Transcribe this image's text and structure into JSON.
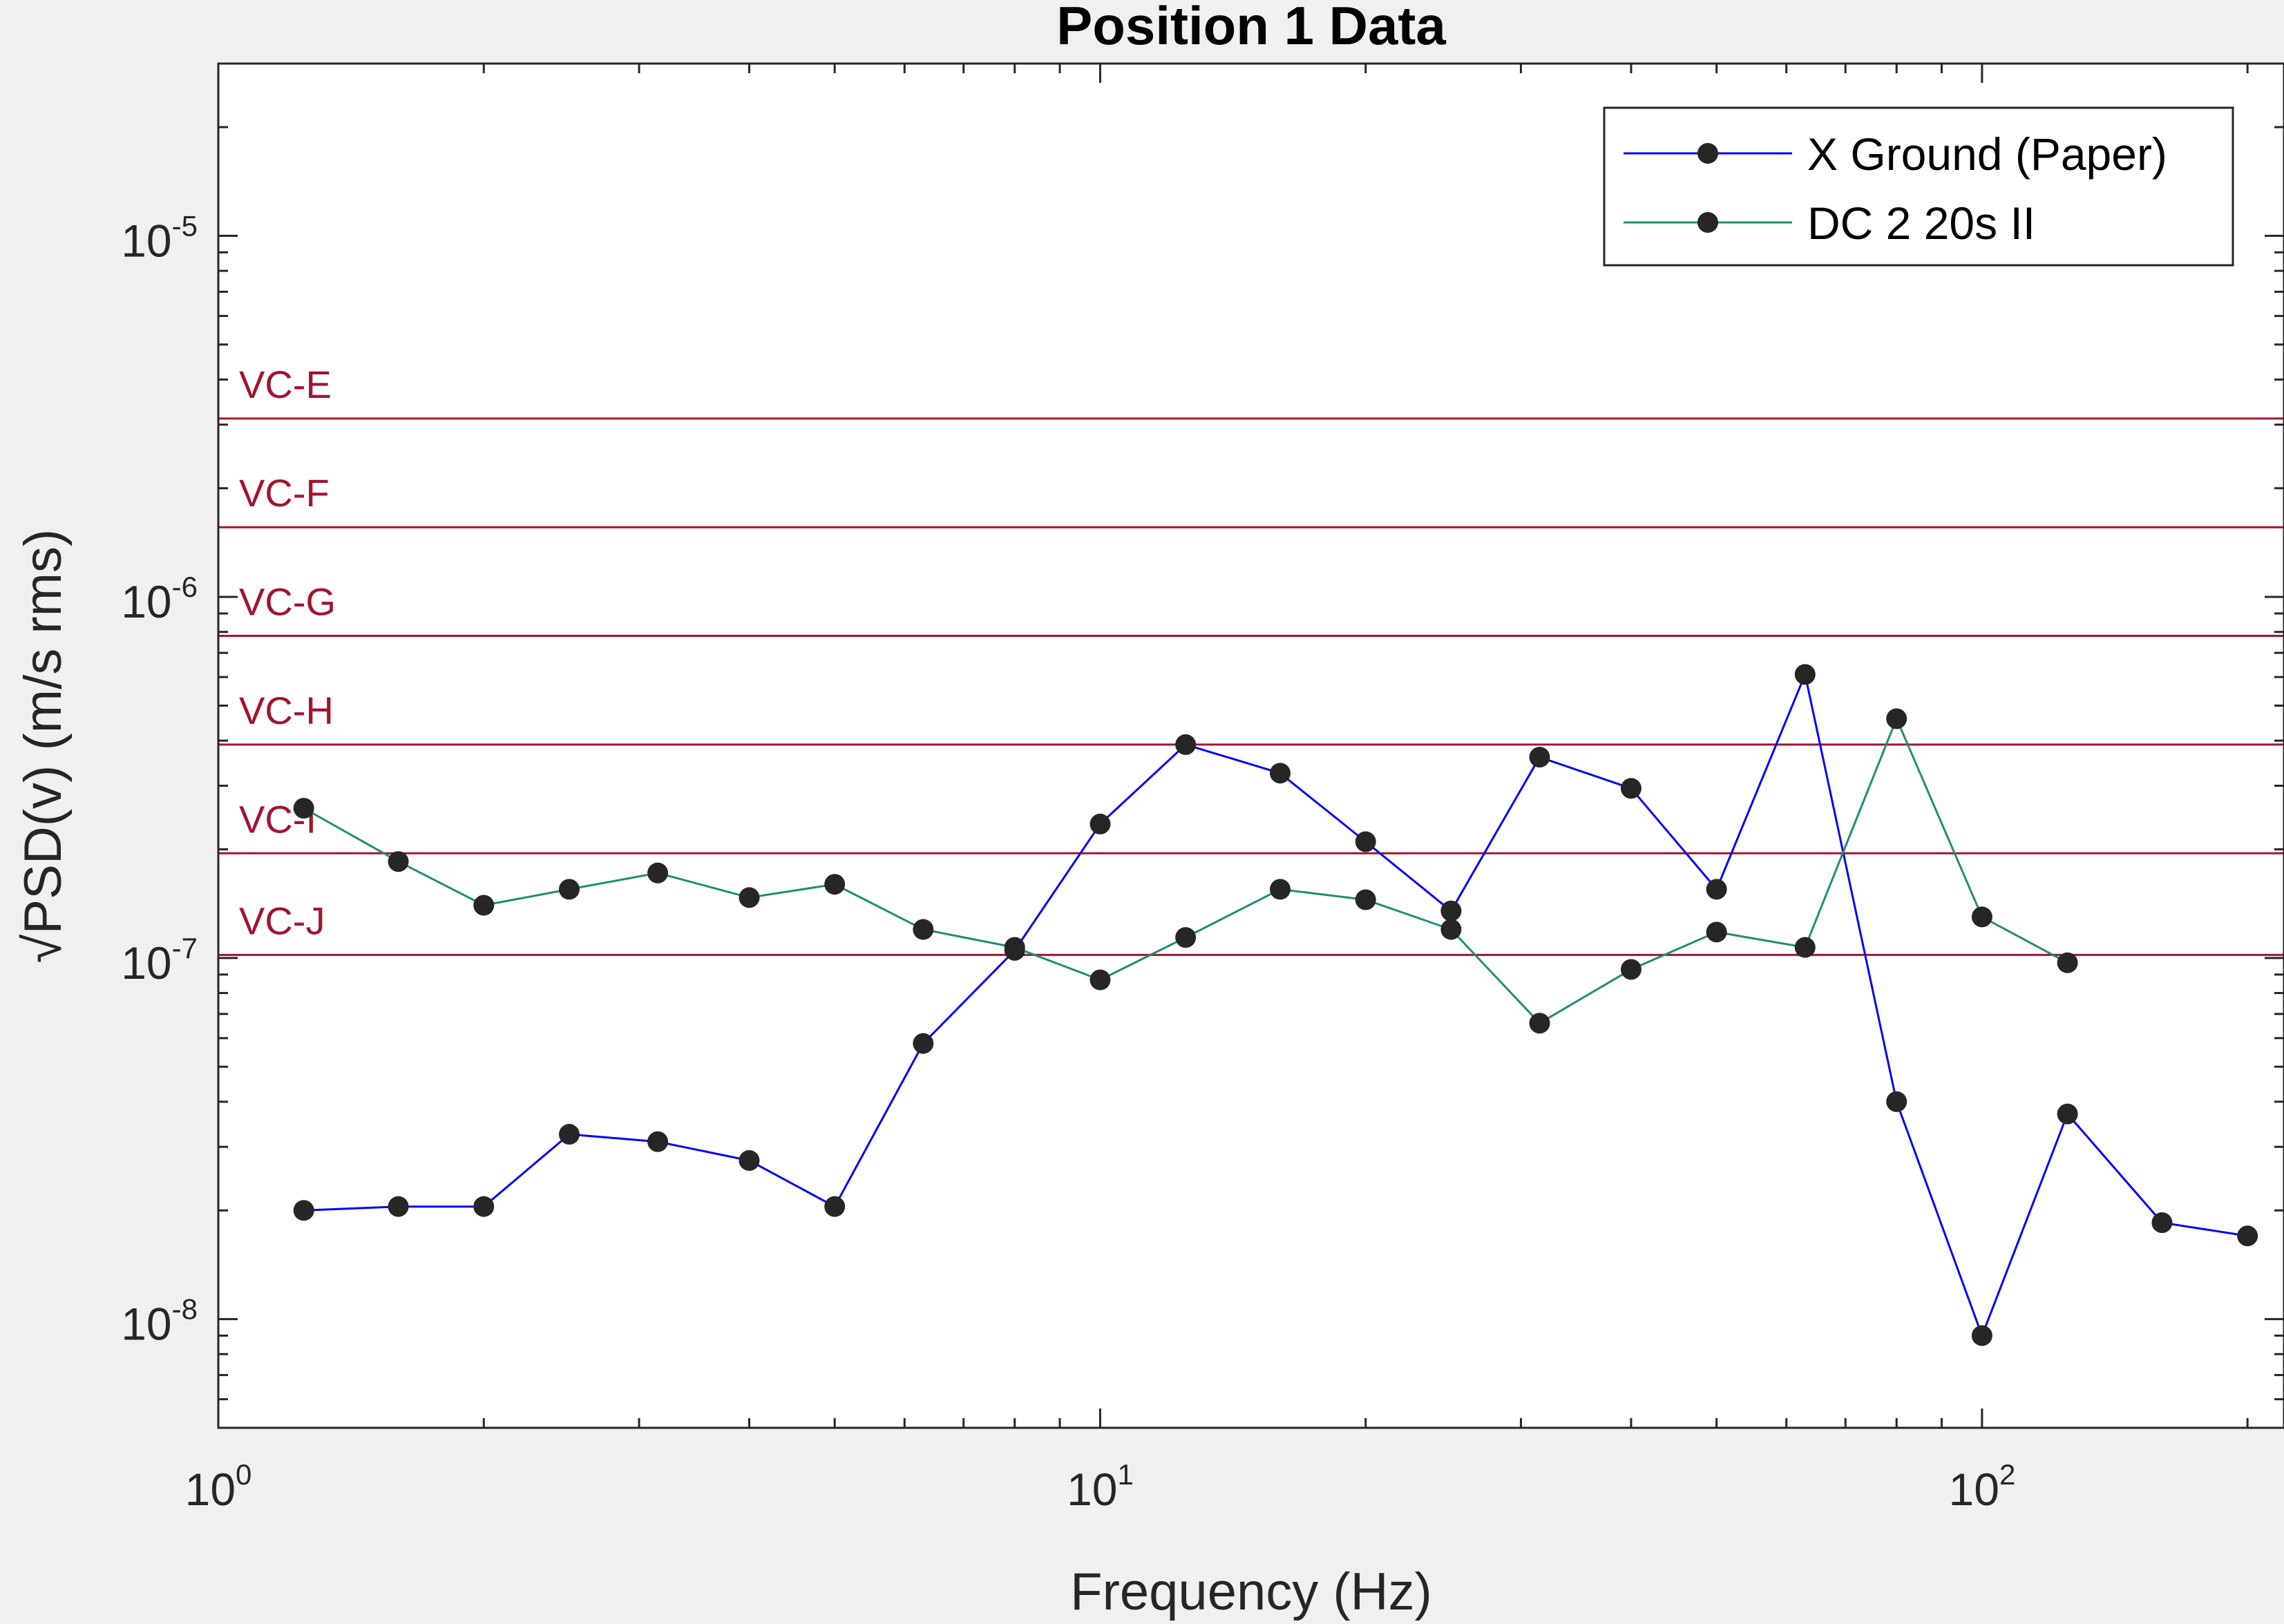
{
  "chart_data": {
    "type": "line",
    "title": "Position 1 Data",
    "xlabel": "Frequency (Hz)",
    "ylabel_prefix": "√",
    "ylabel": "PSD(v)  (m/s rms)",
    "xscale": "log",
    "yscale": "log",
    "xlim": [
      1,
      220
    ],
    "ylim": [
      5e-09,
      3e-05
    ],
    "x_ticks": [
      {
        "base": "10",
        "exp": "0",
        "value": 1
      },
      {
        "base": "10",
        "exp": "1",
        "value": 10
      },
      {
        "base": "10",
        "exp": "2",
        "value": 100
      }
    ],
    "y_ticks": [
      {
        "base": "10",
        "exp": "-8",
        "value": 1e-08
      },
      {
        "base": "10",
        "exp": "-7",
        "value": 1e-07
      },
      {
        "base": "10",
        "exp": "-6",
        "value": 1e-06
      },
      {
        "base": "10",
        "exp": "-5",
        "value": 1e-05
      }
    ],
    "grid": false,
    "legend_position": "top-right",
    "reference_color": "#a2142f",
    "reference_lines": [
      {
        "label": "VC-E",
        "value": 3.12e-06
      },
      {
        "label": "VC-F",
        "value": 1.56e-06
      },
      {
        "label": "VC-G",
        "value": 7.8e-07
      },
      {
        "label": "VC-H",
        "value": 3.9e-07
      },
      {
        "label": "VC-I",
        "value": 1.95e-07
      },
      {
        "label": "VC-J",
        "value": 1.02e-07
      }
    ],
    "series": [
      {
        "name": "X Ground (Paper)",
        "color": "#0000ff",
        "x": [
          1.25,
          1.6,
          2,
          2.5,
          3.15,
          4,
          5,
          6.3,
          8,
          10,
          12.5,
          16,
          20,
          25,
          31.5,
          40,
          50,
          63,
          80,
          100,
          125,
          160,
          200
        ],
        "values": [
          2e-08,
          2.05e-08,
          2.05e-08,
          3.25e-08,
          3.1e-08,
          2.75e-08,
          2.05e-08,
          5.8e-08,
          1.05e-07,
          2.35e-07,
          3.9e-07,
          3.25e-07,
          2.1e-07,
          1.35e-07,
          3.6e-07,
          2.95e-07,
          1.55e-07,
          6.1e-07,
          4e-08,
          9e-09,
          3.7e-08,
          1.85e-08,
          1.7e-08
        ]
      },
      {
        "name": "DC 2 20s II",
        "color": "#1f8f6e",
        "x": [
          1.25,
          1.6,
          2,
          2.5,
          3.15,
          4,
          5,
          6.3,
          8,
          10,
          12.5,
          16,
          20,
          25,
          31.5,
          40,
          50,
          63,
          80,
          100,
          125
        ],
        "values": [
          2.6e-07,
          1.85e-07,
          1.4e-07,
          1.55e-07,
          1.72e-07,
          1.47e-07,
          1.6e-07,
          1.2e-07,
          1.07e-07,
          8.7e-08,
          1.14e-07,
          1.55e-07,
          1.45e-07,
          1.2e-07,
          6.6e-08,
          9.3e-08,
          1.18e-07,
          1.07e-07,
          4.6e-07,
          1.3e-07,
          9.7e-08
        ]
      }
    ]
  }
}
